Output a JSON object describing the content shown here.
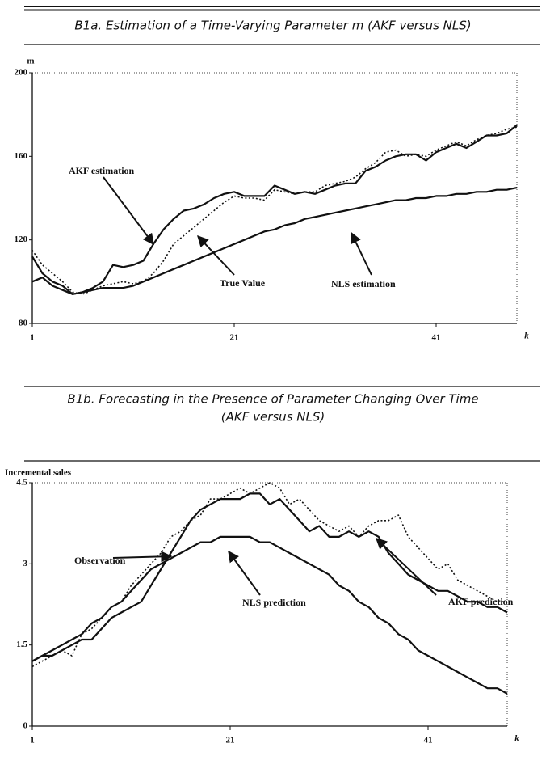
{
  "chart_data": [
    {
      "type": "line",
      "title": "B1a. Estimation of a Time-Varying Parameter m (AKF versus NLS)",
      "ylabel": "m",
      "xlabel": "k",
      "x": [
        1,
        2,
        3,
        4,
        5,
        6,
        7,
        8,
        9,
        10,
        11,
        12,
        13,
        14,
        15,
        16,
        17,
        18,
        19,
        20,
        21,
        22,
        23,
        24,
        25,
        26,
        27,
        28,
        29,
        30,
        31,
        32,
        33,
        34,
        35,
        36,
        37,
        38,
        39,
        40,
        41,
        42,
        43,
        44,
        45,
        46,
        47,
        48,
        49
      ],
      "xlim": [
        1,
        49
      ],
      "xticks": [
        1,
        21,
        41
      ],
      "ylim": [
        80,
        200
      ],
      "yticks": [
        80,
        120,
        160,
        200
      ],
      "annotations": [
        "AKF estimation",
        "True Value",
        "NLS estimation"
      ],
      "series": [
        {
          "name": "AKF estimation",
          "color": "#111111",
          "line_style": "solid",
          "values": [
            112,
            104,
            100,
            98,
            94,
            95,
            97,
            100,
            108,
            107,
            108,
            110,
            118,
            125,
            130,
            134,
            135,
            137,
            140,
            142,
            143,
            141,
            141,
            141,
            146,
            144,
            142,
            143,
            142,
            144,
            146,
            147,
            147,
            153,
            155,
            158,
            160,
            161,
            161,
            158,
            162,
            164,
            166,
            164,
            167,
            170,
            170,
            171,
            175
          ]
        },
        {
          "name": "True Value",
          "color": "#111111",
          "line_style": "dotted",
          "values": [
            115,
            108,
            104,
            100,
            95,
            94,
            96,
            98,
            99,
            100,
            99,
            100,
            104,
            110,
            118,
            122,
            126,
            130,
            134,
            138,
            141,
            140,
            140,
            139,
            144,
            143,
            142,
            143,
            143,
            146,
            147,
            148,
            150,
            154,
            157,
            162,
            163,
            160,
            161,
            160,
            163,
            165,
            167,
            165,
            168,
            170,
            171,
            173,
            174
          ]
        },
        {
          "name": "NLS estimation",
          "color": "#111111",
          "line_style": "solid",
          "values": [
            100,
            102,
            98,
            96,
            94,
            95,
            96,
            97,
            97,
            97,
            98,
            100,
            102,
            104,
            106,
            108,
            110,
            112,
            114,
            116,
            118,
            120,
            122,
            124,
            125,
            127,
            128,
            130,
            131,
            132,
            133,
            134,
            135,
            136,
            137,
            138,
            139,
            139,
            140,
            140,
            141,
            141,
            142,
            142,
            143,
            143,
            144,
            144,
            145
          ]
        }
      ]
    },
    {
      "type": "line",
      "title": "B1b. Forecasting in the Presence of Parameter Changing Over Time",
      "subtitle": "(AKF versus NLS)",
      "ylabel": "Incremental sales",
      "xlabel": "k",
      "x": [
        1,
        2,
        3,
        4,
        5,
        6,
        7,
        8,
        9,
        10,
        11,
        12,
        13,
        14,
        15,
        16,
        17,
        18,
        19,
        20,
        21,
        22,
        23,
        24,
        25,
        26,
        27,
        28,
        29,
        30,
        31,
        32,
        33,
        34,
        35,
        36,
        37,
        38,
        39,
        40,
        41,
        42,
        43,
        44,
        45,
        46,
        47,
        48,
        49
      ],
      "xlim": [
        1,
        49
      ],
      "xticks": [
        1,
        21,
        41
      ],
      "ylim": [
        0,
        4.5
      ],
      "yticks": [
        0,
        1.5,
        3,
        4.5
      ],
      "annotations": [
        "Observation",
        "NLS prediction",
        "AKF prediction"
      ],
      "series": [
        {
          "name": "Observation",
          "color": "#111111",
          "line_style": "dotted",
          "values": [
            1.1,
            1.2,
            1.3,
            1.4,
            1.3,
            1.7,
            1.8,
            2.0,
            2.2,
            2.3,
            2.6,
            2.8,
            3.0,
            3.2,
            3.5,
            3.6,
            3.8,
            3.9,
            4.2,
            4.2,
            4.3,
            4.4,
            4.3,
            4.4,
            4.5,
            4.4,
            4.1,
            4.2,
            4.0,
            3.8,
            3.7,
            3.6,
            3.7,
            3.5,
            3.7,
            3.8,
            3.8,
            3.9,
            3.5,
            3.3,
            3.1,
            2.9,
            3.0,
            2.7,
            2.6,
            2.5,
            2.4,
            2.3,
            2.3
          ]
        },
        {
          "name": "AKF prediction",
          "color": "#111111",
          "line_style": "solid",
          "values": [
            1.2,
            1.3,
            1.3,
            1.4,
            1.5,
            1.6,
            1.6,
            1.8,
            2.0,
            2.1,
            2.2,
            2.3,
            2.6,
            2.9,
            3.2,
            3.5,
            3.8,
            4.0,
            4.1,
            4.2,
            4.2,
            4.2,
            4.3,
            4.3,
            4.1,
            4.2,
            4.0,
            3.8,
            3.6,
            3.7,
            3.5,
            3.5,
            3.6,
            3.5,
            3.6,
            3.5,
            3.2,
            3.0,
            2.8,
            2.7,
            2.6,
            2.5,
            2.5,
            2.4,
            2.3,
            2.3,
            2.2,
            2.2,
            2.1
          ]
        },
        {
          "name": "NLS prediction",
          "color": "#111111",
          "line_style": "solid",
          "values": [
            1.2,
            1.3,
            1.4,
            1.5,
            1.6,
            1.7,
            1.9,
            2.0,
            2.2,
            2.3,
            2.5,
            2.7,
            2.9,
            3.0,
            3.1,
            3.2,
            3.3,
            3.4,
            3.4,
            3.5,
            3.5,
            3.5,
            3.5,
            3.4,
            3.4,
            3.3,
            3.2,
            3.1,
            3.0,
            2.9,
            2.8,
            2.6,
            2.5,
            2.3,
            2.2,
            2.0,
            1.9,
            1.7,
            1.6,
            1.4,
            1.3,
            1.2,
            1.1,
            1.0,
            0.9,
            0.8,
            0.7,
            0.7,
            0.6
          ]
        }
      ]
    }
  ]
}
